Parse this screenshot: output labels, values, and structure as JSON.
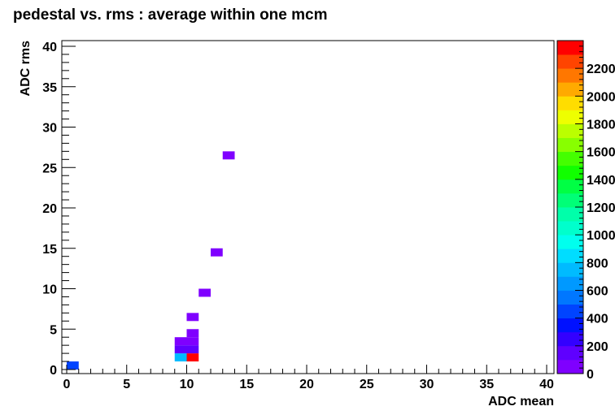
{
  "chart_data": {
    "type": "heatmap",
    "title": "pedestal vs. rms : average within one mcm",
    "xlabel": "ADC mean",
    "ylabel": "ADC rms",
    "xlim": [
      0,
      40
    ],
    "ylim": [
      0,
      40
    ],
    "bin_width": 1,
    "xticks": [
      0,
      5,
      10,
      15,
      20,
      25,
      30,
      35,
      40
    ],
    "yticks": [
      0,
      5,
      10,
      15,
      20,
      25,
      30,
      35,
      40
    ],
    "x_tick_labels": [
      "0",
      "5",
      "10",
      "15",
      "20",
      "25",
      "30",
      "35",
      "40"
    ],
    "y_tick_labels": [
      "0",
      "5",
      "10",
      "15",
      "20",
      "25",
      "30",
      "35",
      "40"
    ],
    "cells": [
      {
        "x": 0,
        "y": 0,
        "value": 450
      },
      {
        "x": 9,
        "y": 1,
        "value": 700
      },
      {
        "x": 10,
        "y": 1,
        "value": 2350
      },
      {
        "x": 9,
        "y": 2,
        "value": 180
      },
      {
        "x": 10,
        "y": 2,
        "value": 180
      },
      {
        "x": 9,
        "y": 3,
        "value": 80
      },
      {
        "x": 10,
        "y": 3,
        "value": 80
      },
      {
        "x": 10,
        "y": 4,
        "value": 80
      },
      {
        "x": 10,
        "y": 6,
        "value": 80
      },
      {
        "x": 11,
        "y": 9,
        "value": 80
      },
      {
        "x": 12,
        "y": 14,
        "value": 80
      },
      {
        "x": 13,
        "y": 26,
        "value": 80
      }
    ],
    "zlim": [
      0,
      2400
    ],
    "zticks": [
      0,
      200,
      400,
      600,
      800,
      1000,
      1200,
      1400,
      1600,
      1800,
      2000,
      2200
    ],
    "z_tick_labels": [
      "0",
      "200",
      "400",
      "600",
      "800",
      "1000",
      "1200",
      "1400",
      "1600",
      "1800",
      "2000",
      "2200"
    ],
    "palette": [
      "#7f00ff",
      "#5f00ff",
      "#3300ff",
      "#0011ff",
      "#0044ff",
      "#0077ff",
      "#0099ff",
      "#00bbff",
      "#00ddff",
      "#00ffee",
      "#00ffcc",
      "#00ffaa",
      "#00ff77",
      "#00ff44",
      "#11ff00",
      "#44ff00",
      "#88ff00",
      "#bbff00",
      "#eeff00",
      "#ffdd00",
      "#ffaa00",
      "#ff7700",
      "#ff4400",
      "#ff0000"
    ]
  }
}
